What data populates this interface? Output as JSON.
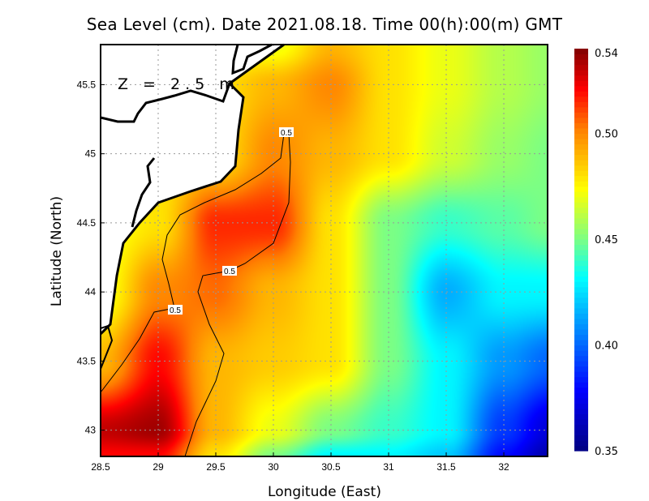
{
  "chart_data": {
    "type": "heatmap",
    "title": "Sea Level (cm). Date 2021.08.18. Time 00(h):00(m) GMT",
    "xlabel": "Longitude (East)",
    "ylabel": "Latitude (North)",
    "xlim": [
      28.5,
      32.38
    ],
    "ylim": [
      42.81,
      45.79
    ],
    "xticks": [
      "28.5",
      "29",
      "29.5",
      "30",
      "30.5",
      "31",
      "31.5",
      "32"
    ],
    "xtick_values": [
      28.5,
      29,
      29.5,
      30,
      30.5,
      31,
      31.5,
      32
    ],
    "yticks": [
      "43",
      "43.5",
      "44",
      "44.5",
      "45",
      "45.5"
    ],
    "ytick_values": [
      43,
      43.5,
      44,
      44.5,
      45,
      45.5
    ],
    "grid": true,
    "annotation": "Z = 2.5 m",
    "colorbar": {
      "range": [
        0.35,
        0.54
      ],
      "ticks": [
        "0.54",
        "0.50",
        "0.45",
        "0.40",
        "0.35"
      ],
      "tick_values": [
        0.54,
        0.5,
        0.45,
        0.4,
        0.35
      ],
      "placement": "right",
      "colormap": [
        "#000080",
        "#0000ff",
        "#00ffff",
        "#80ff80",
        "#ffff00",
        "#ff8000",
        "#ff0000",
        "#800000"
      ]
    },
    "contour_level": "0.5",
    "grid_lons": [
      28.5,
      29,
      29.5,
      30,
      30.5,
      31,
      31.5,
      32,
      32.4
    ],
    "grid_lats": [
      45.8,
      45.5,
      45.0,
      44.5,
      44.0,
      43.5,
      43.0,
      42.8
    ],
    "values": [
      [
        0.47,
        0.47,
        0.47,
        0.47,
        0.49,
        0.48,
        0.47,
        0.46,
        0.455
      ],
      [
        0.48,
        0.48,
        0.48,
        0.49,
        0.5,
        0.48,
        0.47,
        0.46,
        0.455
      ],
      [
        0.48,
        0.48,
        0.48,
        0.5,
        0.49,
        0.48,
        0.465,
        0.455,
        0.45
      ],
      [
        0.47,
        0.48,
        0.515,
        0.515,
        0.48,
        0.45,
        0.44,
        0.445,
        0.45
      ],
      [
        0.47,
        0.5,
        0.505,
        0.49,
        0.48,
        0.45,
        0.415,
        0.43,
        0.43
      ],
      [
        0.49,
        0.52,
        0.49,
        0.485,
        0.48,
        0.45,
        0.43,
        0.41,
        0.4
      ],
      [
        0.53,
        0.535,
        0.49,
        0.47,
        0.45,
        0.44,
        0.43,
        0.39,
        0.37
      ],
      [
        0.52,
        0.52,
        0.48,
        0.45,
        0.43,
        0.43,
        0.42,
        0.38,
        0.36
      ]
    ]
  }
}
